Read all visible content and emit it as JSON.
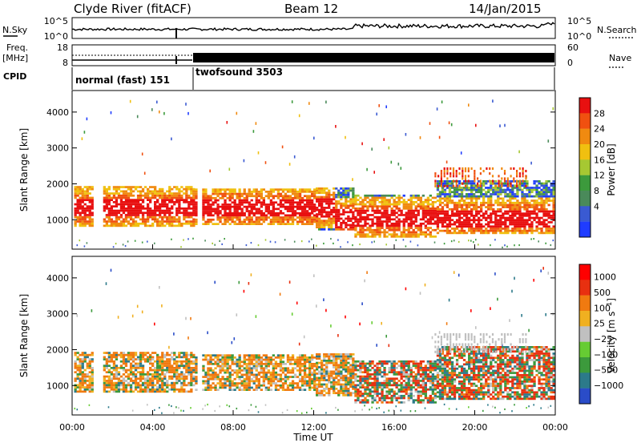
{
  "header": {
    "station": "Clyde River (fitACF)",
    "beam": "Beam 12",
    "date": "14/Jan/2015"
  },
  "top_panel": {
    "left_label": "N.Sky",
    "left_ticks": [
      "10^5",
      "10^0"
    ],
    "right_ticks": [
      "10^5",
      "10^0"
    ],
    "right_label": "N.Search"
  },
  "freq_panel": {
    "left_label_1": "Freq.",
    "left_label_2": "[MHz]",
    "left_ticks": [
      "18",
      "8"
    ],
    "right_ticks": [
      "60",
      "0"
    ],
    "right_label": "Nave"
  },
  "cpid": {
    "label": "CPID",
    "modes": [
      {
        "name": "normal (fast) 151",
        "start_hour": 0,
        "end_hour": 6
      },
      {
        "name": "twofsound 3503",
        "start_hour": 6,
        "end_hour": 24
      }
    ]
  },
  "chart_data": [
    {
      "type": "heatmap",
      "name": "power",
      "ylabel": "Slant Range [km]",
      "xlabel": "Time UT",
      "x_ticks": [
        "00:00",
        "04:00",
        "08:00",
        "12:00",
        "16:00",
        "20:00",
        "00:00"
      ],
      "y_ticks": [
        "1000",
        "2000",
        "3000",
        "4000"
      ],
      "xlim": [
        0,
        24
      ],
      "ylim": [
        180,
        4600
      ],
      "colorbar": {
        "label": "Power [dB]",
        "ticks": [
          "4",
          "8",
          "12",
          "16",
          "20",
          "24",
          "28"
        ],
        "colors": [
          "#1f3cff",
          "#3a5ad2",
          "#4a8a5a",
          "#3c9a3c",
          "#a6c832",
          "#f0c010",
          "#f08a10",
          "#f05010",
          "#e81010"
        ]
      }
    },
    {
      "type": "heatmap",
      "name": "velocity",
      "ylabel": "Slant Range [km]",
      "xlabel": "Time UT",
      "x_ticks": [
        "00:00",
        "04:00",
        "08:00",
        "12:00",
        "16:00",
        "20:00",
        "00:00"
      ],
      "y_ticks": [
        "1000",
        "2000",
        "3000",
        "4000"
      ],
      "xlim": [
        0,
        24
      ],
      "ylim": [
        180,
        4600
      ],
      "colorbar": {
        "label": "Velocity [m s^-1]",
        "ticks": [
          "1000",
          "500",
          "100",
          "25",
          "−25",
          "−100",
          "−500",
          "−1000"
        ],
        "colors": [
          "#2a4cc8",
          "#2c7a8a",
          "#3c9a3c",
          "#66cc33",
          "#c0c0c0",
          "#f0b020",
          "#f07a10",
          "#e83010",
          "#ff0000"
        ]
      }
    }
  ]
}
